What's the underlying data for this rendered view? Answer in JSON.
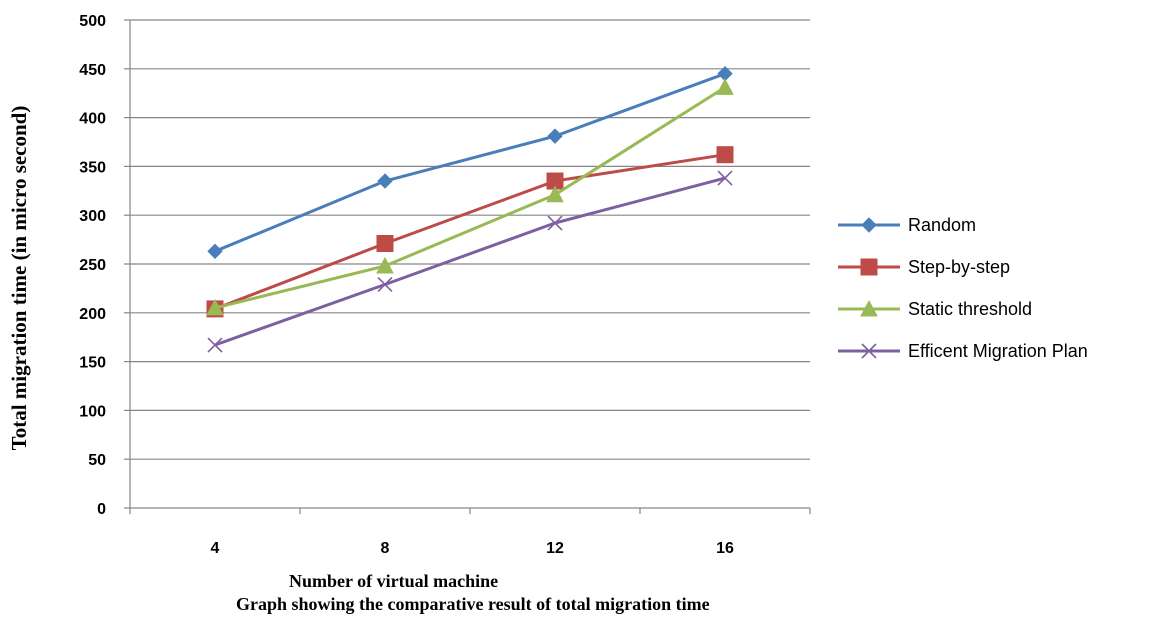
{
  "chart_data": {
    "type": "line",
    "title": "",
    "xlabel": "Number of virtual machine",
    "ylabel": "Total migration time (in micro second)",
    "caption": "Graph showing the comparative result of total migration time",
    "categories": [
      "4",
      "8",
      "12",
      "16"
    ],
    "ylim": [
      0,
      500
    ],
    "yticks": [
      "0",
      "50",
      "100",
      "150",
      "200",
      "250",
      "300",
      "350",
      "400",
      "450",
      "500"
    ],
    "grid": true,
    "legend_position": "right",
    "series": [
      {
        "name": "Random",
        "values": [
          263,
          335,
          381,
          445
        ],
        "color": "#4a7ebb",
        "marker": "diamond"
      },
      {
        "name": "Step-by-step",
        "values": [
          204,
          271,
          335,
          362
        ],
        "color": "#be4b48",
        "marker": "square"
      },
      {
        "name": "Static threshold",
        "values": [
          205,
          248,
          321,
          431
        ],
        "color": "#98b954",
        "marker": "triangle"
      },
      {
        "name": "Efficent Migration Plan",
        "values": [
          167,
          229,
          292,
          338
        ],
        "color": "#7d60a0",
        "marker": "x"
      }
    ]
  }
}
